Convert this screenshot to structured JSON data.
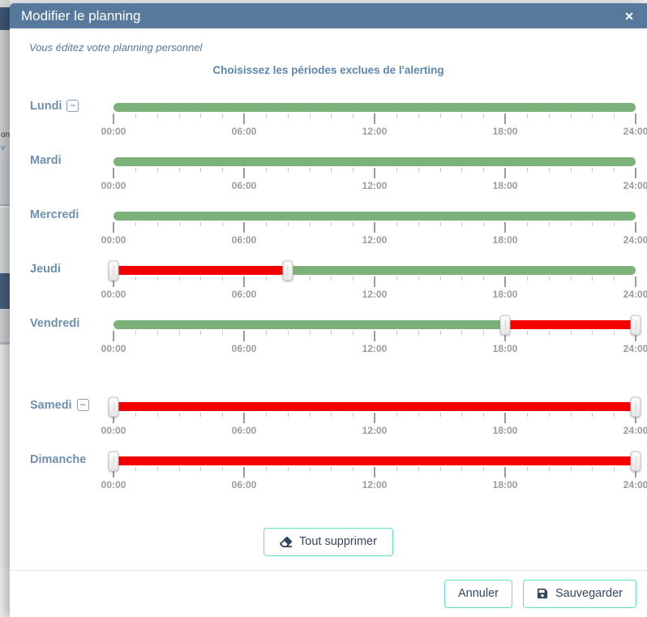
{
  "background": {
    "fragments": [
      "on",
      "v"
    ]
  },
  "modal": {
    "title": "Modifier le planning",
    "subtitle": "Vous éditez votre planning personnel",
    "section_title": "Choisissez les périodes exclues de l'alerting"
  },
  "icons": {
    "close": "✕",
    "remove": "−"
  },
  "colors": {
    "header": "#56799c",
    "green": "#7cb17a",
    "red": "#f40000",
    "accent_border": "#5ee1c3",
    "day_label": "#6f8fb0"
  },
  "time_labels": [
    "00:00",
    "06:00",
    "12:00",
    "18:00",
    "24:00"
  ],
  "hours_per_day": 24,
  "days": [
    {
      "label": "Lundi",
      "removable": true,
      "extra_gap_before": false,
      "segments": [
        {
          "color": "green",
          "start": 0,
          "end": 24
        }
      ],
      "handles": []
    },
    {
      "label": "Mardi",
      "removable": false,
      "extra_gap_before": false,
      "segments": [
        {
          "color": "green",
          "start": 0,
          "end": 24
        }
      ],
      "handles": []
    },
    {
      "label": "Mercredi",
      "removable": false,
      "extra_gap_before": false,
      "segments": [
        {
          "color": "green",
          "start": 0,
          "end": 24
        }
      ],
      "handles": []
    },
    {
      "label": "Jeudi",
      "removable": false,
      "extra_gap_before": false,
      "segments": [
        {
          "color": "red",
          "start": 0,
          "end": 8
        },
        {
          "color": "green",
          "start": 8,
          "end": 24
        }
      ],
      "handles": [
        0,
        8
      ]
    },
    {
      "label": "Vendredi",
      "removable": false,
      "extra_gap_before": false,
      "segments": [
        {
          "color": "green",
          "start": 0,
          "end": 18
        },
        {
          "color": "red",
          "start": 18,
          "end": 24
        }
      ],
      "handles": [
        18,
        24
      ]
    },
    {
      "label": "Samedi",
      "removable": true,
      "extra_gap_before": true,
      "segments": [
        {
          "color": "red",
          "start": 0,
          "end": 24
        }
      ],
      "handles": [
        0,
        24
      ]
    },
    {
      "label": "Dimanche",
      "removable": false,
      "extra_gap_before": false,
      "segments": [
        {
          "color": "red",
          "start": 0,
          "end": 24
        }
      ],
      "handles": [
        0,
        24
      ]
    }
  ],
  "buttons": {
    "clear_all": "Tout supprimer",
    "cancel": "Annuler",
    "save": "Sauvegarder"
  }
}
